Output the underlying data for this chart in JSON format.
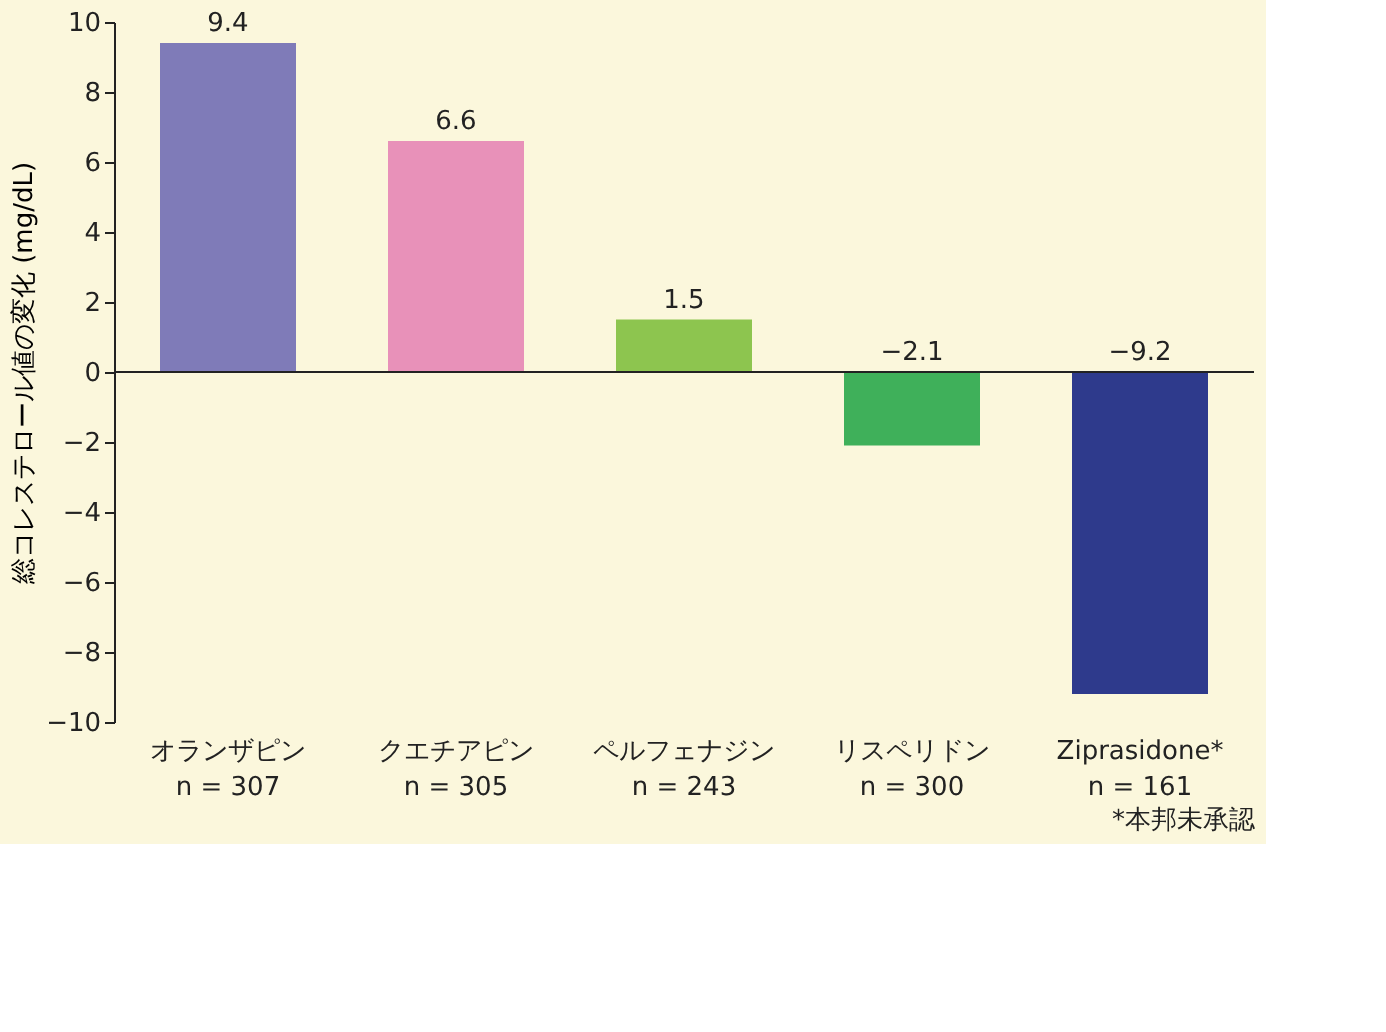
{
  "chart_data": {
    "type": "bar",
    "categories": [
      "オランザピン\nn = 307",
      "クエチアピン\nn = 305",
      "ペルフェナジン\nn = 243",
      "リスペリドン\nn = 300",
      "Ziprasidone*\nn = 161"
    ],
    "values": [
      9.4,
      6.6,
      1.5,
      -2.1,
      -9.2
    ],
    "colors": [
      "#7f7bb8",
      "#e891b9",
      "#8dc54f",
      "#3fb05a",
      "#2e3a8c"
    ],
    "ylabel": "総コレステロール値の変化 (mg/dL)",
    "ylim": [
      -10,
      10
    ],
    "yticks": [
      -10,
      -8,
      -6,
      -4,
      -2,
      0,
      2,
      4,
      6,
      8,
      10
    ],
    "data_labels": true,
    "annotations": [
      "*本邦未承認"
    ]
  }
}
